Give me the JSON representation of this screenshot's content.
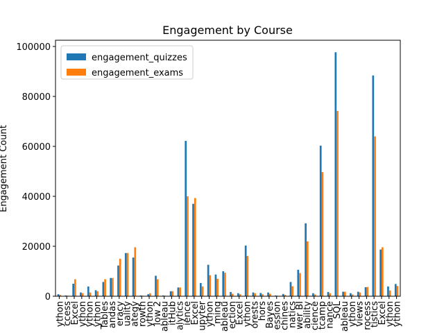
{
  "chart_data": {
    "type": "bar",
    "title": "Engagement by Course",
    "y_label": "Engagement Count",
    "categories": [
      "ython",
      "ccess",
      "Excel",
      "ython",
      "ython",
      "ython",
      "Tables",
      "andas",
      "eracy",
      "uality",
      "ategy",
      "rowth",
      "ython",
      "low 2",
      "ableau",
      "itHub",
      "alytics",
      "ience",
      "Excel",
      "upyter",
      "ython",
      "ming",
      "ableau",
      "ection",
      "Excel",
      "ython",
      "orests",
      "hors",
      "Bayes",
      "ession",
      "chines",
      "natics",
      "wer BI",
      "ability",
      "cience",
      "tcamp",
      "nance",
      "SQL",
      "ableau",
      "ython",
      "views",
      "rocess",
      "tistics",
      "Excel",
      "ython",
      "ython"
    ],
    "series": [
      {
        "name": "engagement_quizzes",
        "color": "#1f77b4",
        "values": [
          800,
          300,
          5000,
          1500,
          3900,
          2400,
          5700,
          7300,
          12300,
          17300,
          15500,
          300,
          800,
          8200,
          300,
          2000,
          3500,
          62200,
          37000,
          5300,
          12600,
          8700,
          10000,
          1700,
          1200,
          20300,
          1500,
          1300,
          1500,
          300,
          900,
          5700,
          10600,
          29200,
          1200,
          60300,
          1700,
          97700,
          1800,
          1200,
          1800,
          3600,
          88400,
          18700,
          3900,
          4900
        ]
      },
      {
        "name": "engagement_exams",
        "color": "#ff7f0e",
        "values": [
          500,
          200,
          6800,
          1200,
          1500,
          2000,
          6800,
          7300,
          15000,
          17300,
          19600,
          200,
          1200,
          6800,
          200,
          2000,
          3500,
          40000,
          39300,
          3900,
          8400,
          7000,
          9400,
          1000,
          800,
          16100,
          1200,
          800,
          1000,
          200,
          500,
          4000,
          9300,
          22000,
          700,
          49700,
          1200,
          74200,
          1800,
          700,
          1500,
          3700,
          64000,
          19600,
          2300,
          4100
        ]
      }
    ],
    "ylim": [
      0,
      102500
    ],
    "yticks": [
      0,
      20000,
      40000,
      60000,
      80000,
      100000
    ],
    "legend": "upper left"
  }
}
